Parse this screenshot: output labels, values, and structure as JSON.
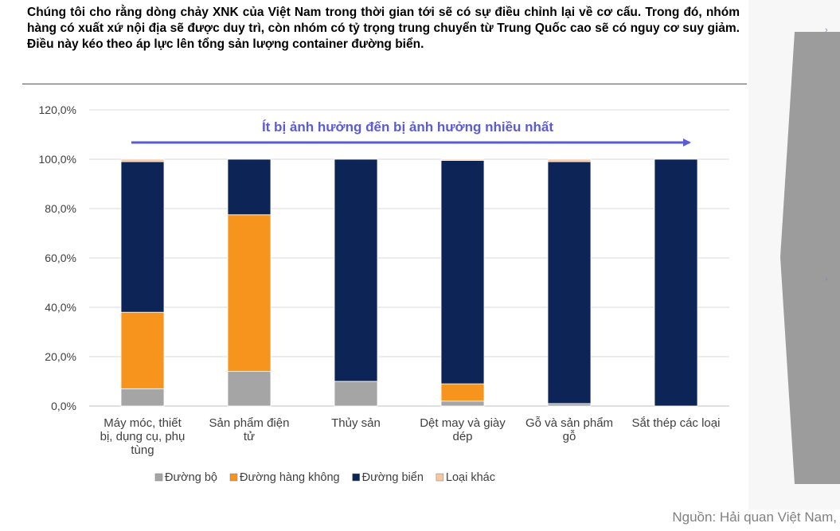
{
  "heading": "Chúng tôi cho rằng dòng chảy XNK của Việt Nam trong thời gian tới sẽ có sự điều chỉnh lại về cơ cấu. Trong đó, nhóm hàng có xuất xứ nội địa sẽ được duy trì, còn nhóm có tỷ trọng trung chuyển từ Trung Quốc cao sẽ có nguy cơ suy giảm. Điều này kéo theo áp lực lên tổng sản lượng container đường biển.",
  "source": "Nguồn: Hải quan Việt Nam,",
  "side_marks": [
    "›",
    "›"
  ],
  "chart_data": {
    "type": "bar",
    "stacked": true,
    "categories": [
      "Máy móc, thiết bị, dụng cụ, phụ tùng",
      "Sản phẩm điện tử",
      "Thủy sản",
      "Dệt may và giày dép",
      "Gỗ và sản phẩm gỗ",
      "Sắt thép các loại"
    ],
    "category_lines": [
      [
        "Máy móc, thiết",
        "bị, dụng cụ, phụ",
        "tùng"
      ],
      [
        "Sản phẩm điện",
        "tử"
      ],
      [
        "Thủy sản"
      ],
      [
        "Dệt may và giày",
        "dép"
      ],
      [
        "Gỗ và sản phẩm",
        "gỗ"
      ],
      [
        "Sắt thép các loại"
      ]
    ],
    "series": [
      {
        "name": "Đường bộ",
        "color": "#a5a5a5",
        "values": [
          7,
          14,
          10,
          2,
          1,
          0
        ]
      },
      {
        "name": "Đường hàng không",
        "color": "#f7941d",
        "values": [
          31,
          63.5,
          0,
          7,
          0,
          0
        ]
      },
      {
        "name": "Đường biển",
        "color": "#0d2456",
        "values": [
          61,
          22.5,
          90,
          90.5,
          98,
          100
        ]
      },
      {
        "name": "Loại khác",
        "color": "#f5c6a0",
        "values": [
          1,
          0,
          0,
          0.5,
          1,
          0
        ]
      }
    ],
    "y_ticks": [
      "0,0%",
      "20,0%",
      "40,0%",
      "60,0%",
      "80,0%",
      "100,0%",
      "120,0%"
    ],
    "y_tick_values": [
      0,
      20,
      40,
      60,
      80,
      100,
      120
    ],
    "ylim": [
      0,
      120
    ],
    "grid": true,
    "legend_position": "bottom",
    "annotation": "Ít bị ảnh hưởng đến bị ảnh hưởng nhiều nhất",
    "annotation_color": "#5b5bd6"
  }
}
